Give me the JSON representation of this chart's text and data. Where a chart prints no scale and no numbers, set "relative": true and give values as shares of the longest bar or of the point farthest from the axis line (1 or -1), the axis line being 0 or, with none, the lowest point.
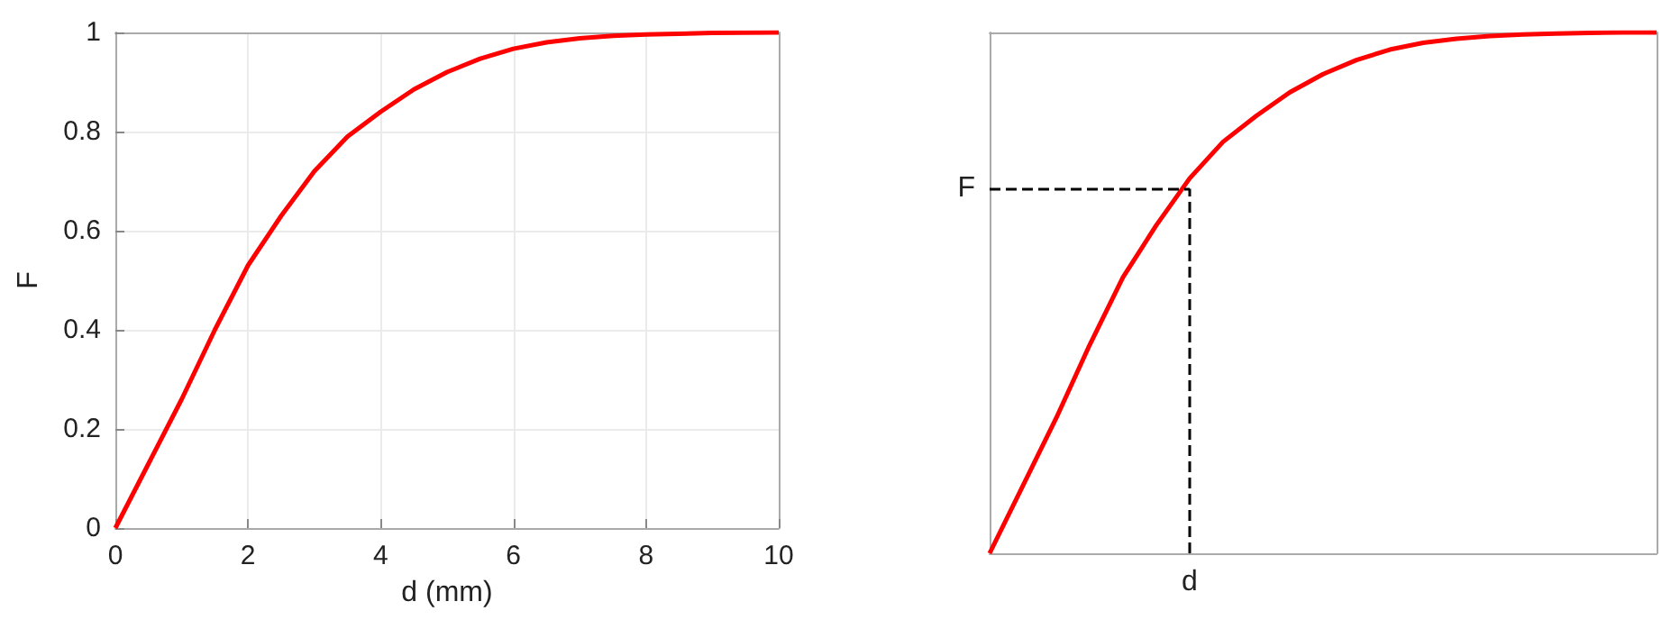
{
  "chart_data": [
    {
      "type": "line",
      "xlabel": "d (mm)",
      "ylabel": "F",
      "x": [
        0,
        0.5,
        1,
        1.5,
        2,
        2.5,
        3,
        3.5,
        4,
        4.5,
        5,
        5.5,
        6,
        6.5,
        7,
        7.5,
        8,
        9,
        10
      ],
      "series": [
        {
          "color": "#ff0000",
          "values": [
            0,
            0.13,
            0.26,
            0.4,
            0.53,
            0.63,
            0.72,
            0.79,
            0.84,
            0.885,
            0.92,
            0.947,
            0.967,
            0.98,
            0.988,
            0.993,
            0.996,
            0.999,
            1
          ]
        }
      ],
      "xlim": [
        0,
        10
      ],
      "ylim": [
        0,
        1
      ],
      "xticks": [
        0,
        2,
        4,
        6,
        8,
        10
      ],
      "yticks": [
        0,
        0.2,
        0.4,
        0.6,
        0.8,
        1
      ],
      "grid": true,
      "marker": "none"
    },
    {
      "type": "line",
      "categories": [
        null,
        null,
        null,
        null,
        null,
        null,
        null,
        null,
        null,
        null,
        null,
        null,
        null,
        null,
        null,
        null,
        null,
        null,
        null,
        null,
        null
      ],
      "series": [
        {
          "color": "#ff0000",
          "values": [
            0,
            0.13,
            0.26,
            0.4,
            0.53,
            0.63,
            0.72,
            0.79,
            0.84,
            0.885,
            0.92,
            0.947,
            0.967,
            0.98,
            0.988,
            0.993,
            0.996,
            0.998,
            0.999,
            1,
            1
          ]
        }
      ],
      "relative": true,
      "marker": "none",
      "ref_lines": [
        {
          "axis": "y",
          "value": 0.7,
          "label": "F",
          "color": "#000000",
          "line_style": "dashed"
        }
      ],
      "annotations": [
        "d"
      ]
    }
  ]
}
